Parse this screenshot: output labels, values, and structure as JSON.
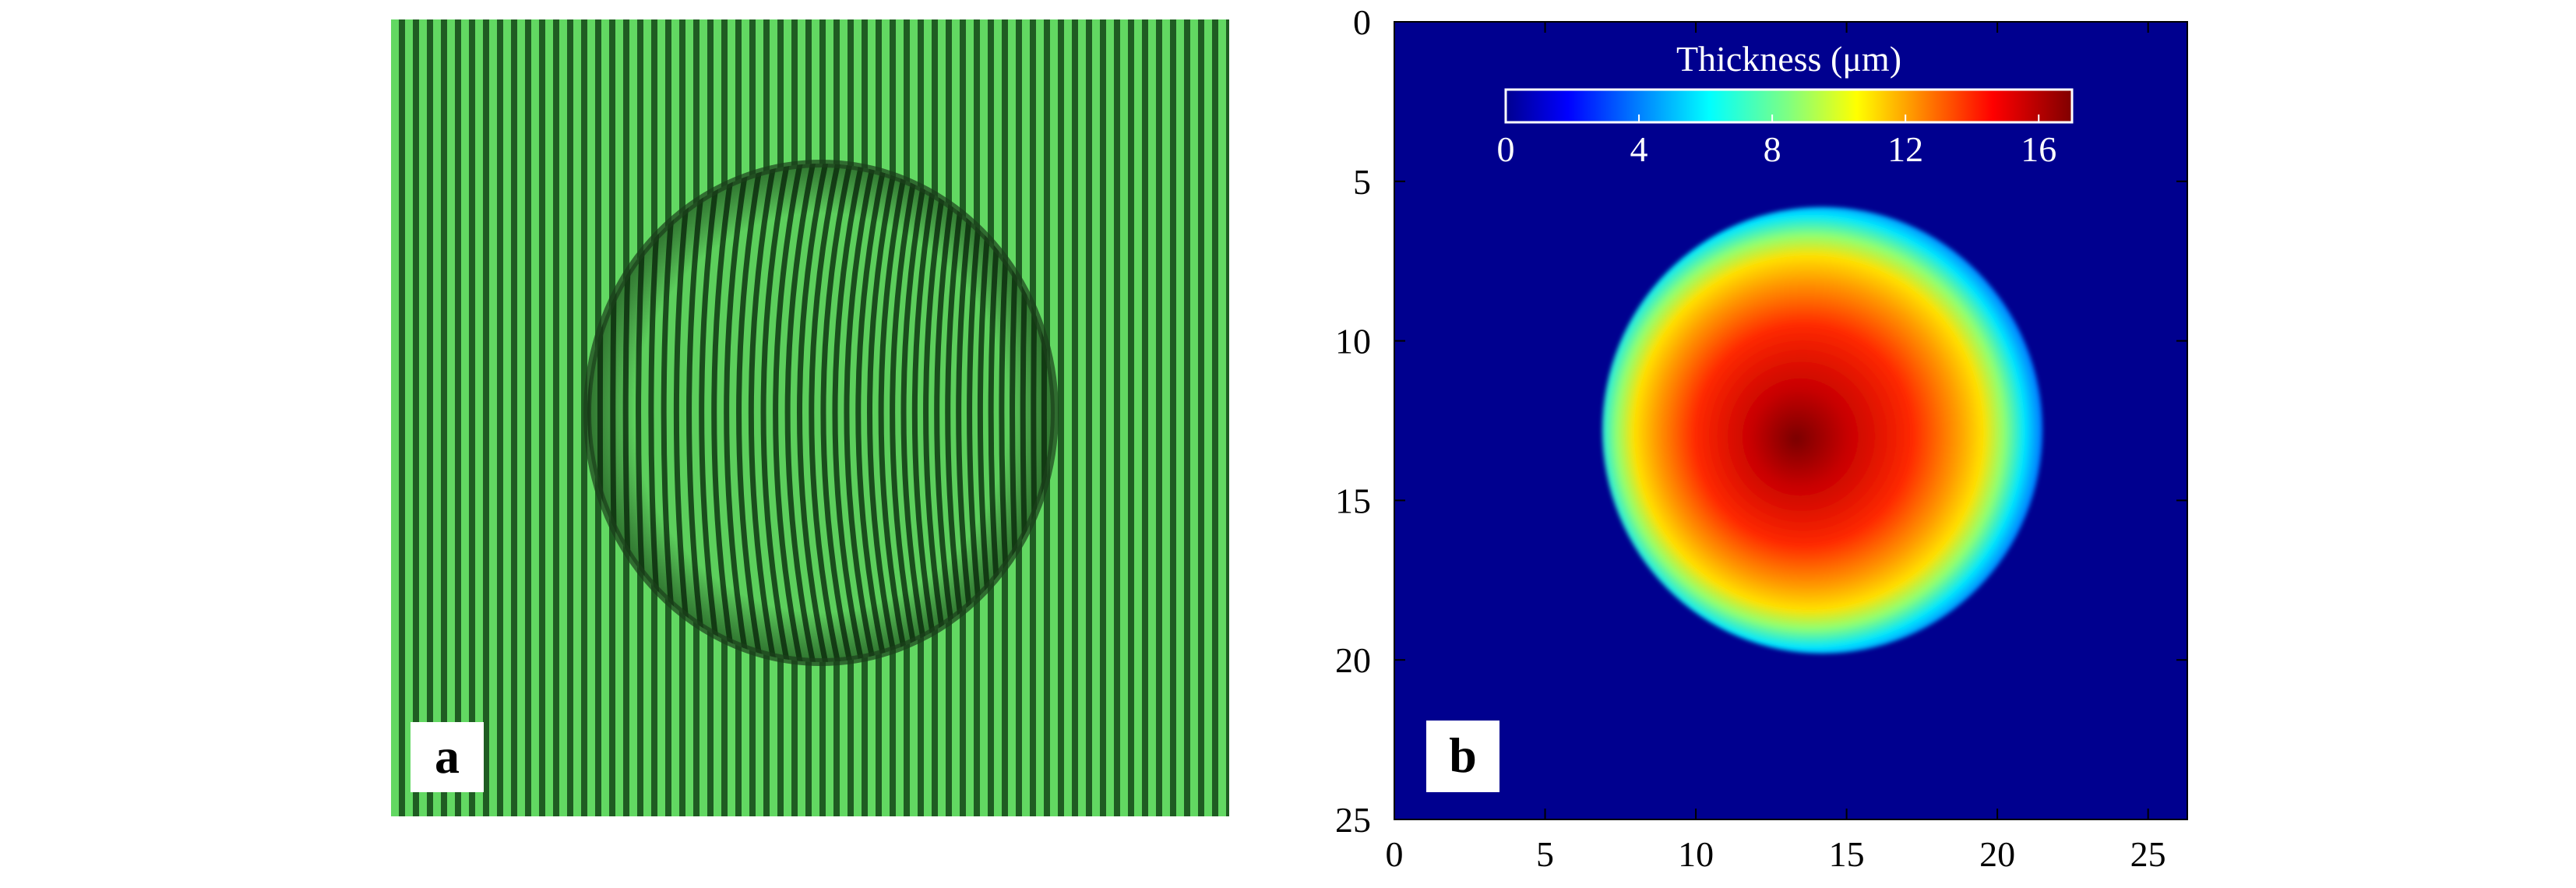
{
  "panels": {
    "a": {
      "label": "a"
    },
    "b": {
      "label": "b"
    }
  },
  "chart_data": {
    "type": "heatmap",
    "title": "",
    "colorbar": {
      "label": "Thickness (μm)",
      "ticks": [
        "0",
        "4",
        "8",
        "12",
        "16"
      ],
      "range": [
        0,
        17
      ],
      "colormap": "jet",
      "placement": "top-inside"
    },
    "xlabel": "",
    "ylabel": "",
    "xlim": [
      0,
      26.3
    ],
    "ylim": [
      0,
      25
    ],
    "y_inverted": true,
    "x_ticks": [
      "0",
      "5",
      "10",
      "15",
      "20",
      "25"
    ],
    "y_ticks": [
      "0",
      "5",
      "10",
      "15",
      "20",
      "25"
    ],
    "grid": false,
    "background_value": 0,
    "feature": {
      "shape": "roughly circular thickness profile",
      "center_x": 14.2,
      "center_y": 12.8,
      "radius_x": 7.3,
      "radius_y": 7.0,
      "peak_thickness": 16.5
    }
  },
  "colors": {
    "interferogram_green": "#5fd35f",
    "fringe_dark": "#1e5a1e",
    "heatmap_background": "#00008f"
  }
}
